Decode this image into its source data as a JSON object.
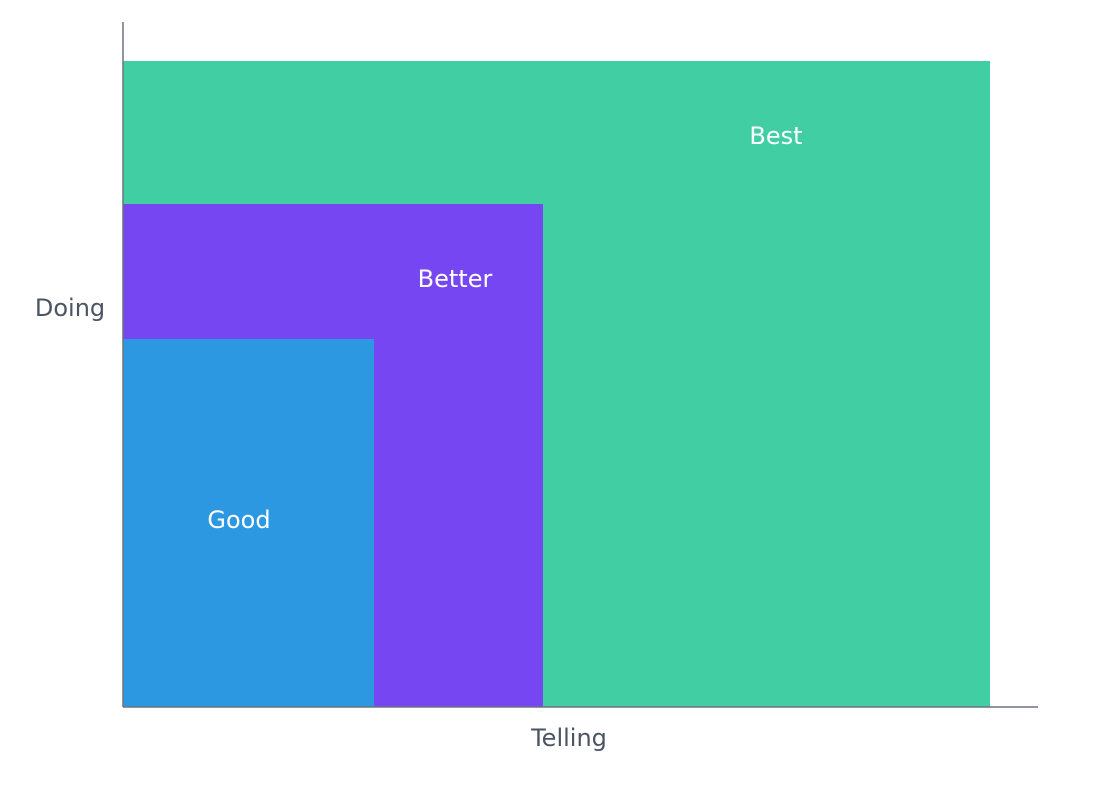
{
  "axes": {
    "y_label": "Doing",
    "x_label": "Telling"
  },
  "nodes": [
    {
      "label": "Best"
    },
    {
      "label": "Better"
    },
    {
      "label": "Good"
    }
  ]
}
